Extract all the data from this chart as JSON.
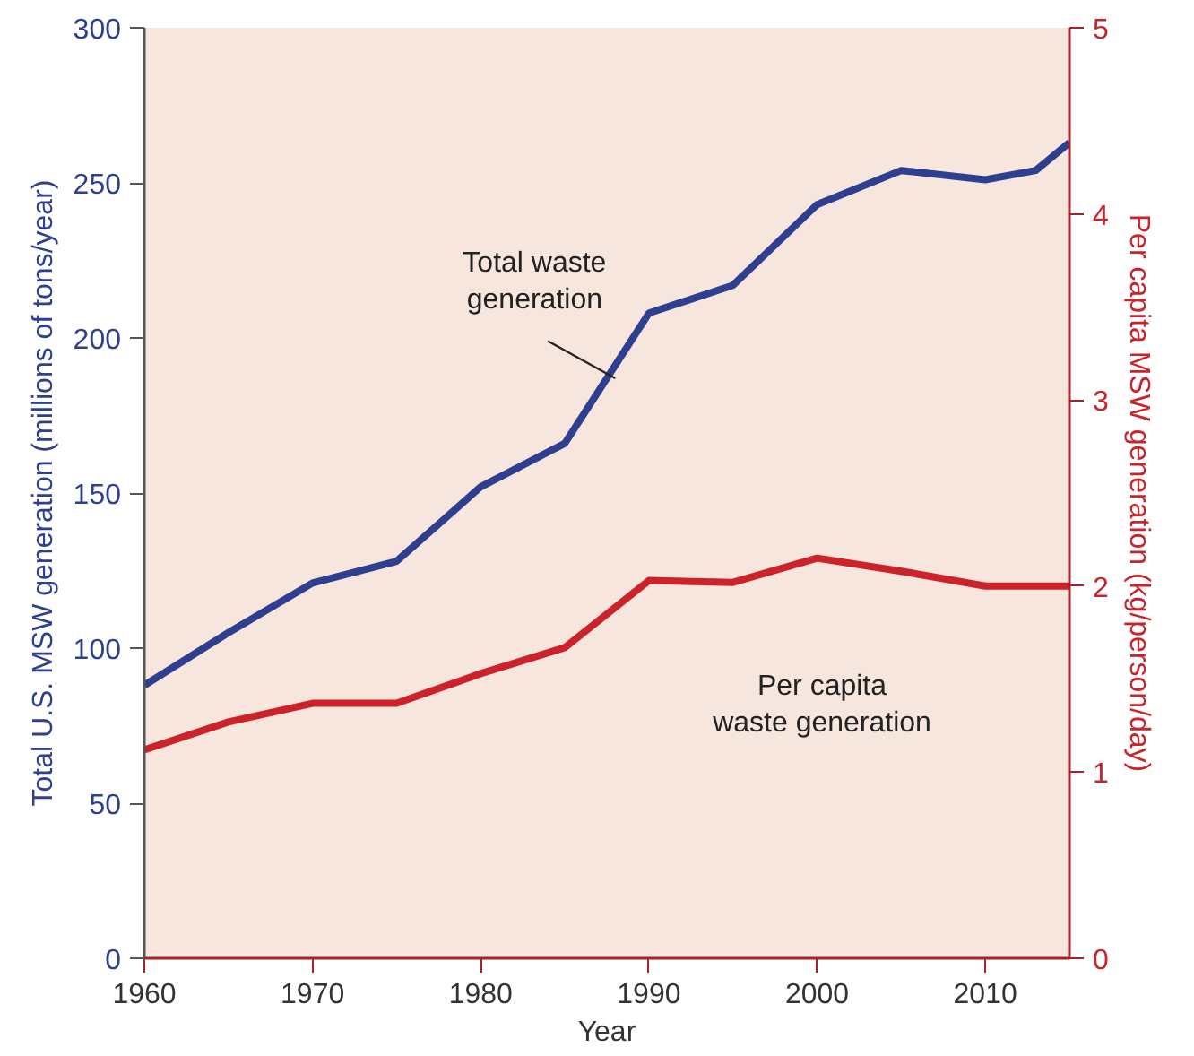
{
  "chart_data": {
    "type": "line",
    "xlabel": "Year",
    "ylabel": "Total U.S. MSW generation (millions of tons/year)",
    "y2label": "Per capita MSW generation (kg/person/day)",
    "x": [
      1960,
      1965,
      1970,
      1975,
      1980,
      1985,
      1990,
      1995,
      2000,
      2005,
      2010,
      2013,
      2015
    ],
    "xlim": [
      1960,
      2015
    ],
    "xticks": [
      1960,
      1970,
      1980,
      1990,
      2000,
      2010
    ],
    "ylim": [
      0,
      300
    ],
    "yticks": [
      0,
      50,
      100,
      150,
      200,
      250,
      300
    ],
    "y2lim": [
      0,
      5
    ],
    "y2ticks": [
      0,
      1,
      2,
      3,
      4,
      5
    ],
    "series": [
      {
        "color": "#2e3f8f",
        "values": [
          88,
          105,
          121,
          128,
          152,
          166,
          208,
          217,
          243,
          254,
          251,
          254,
          263
        ]
      },
      {
        "color": "#cc2229",
        "axis": "y2",
        "x": [
          1960,
          1965,
          1970,
          1975,
          1980,
          1985,
          1990,
          1995,
          2000,
          2005,
          2010,
          2015
        ],
        "values": [
          1.12,
          1.27,
          1.37,
          1.37,
          1.53,
          1.67,
          2.03,
          2.02,
          2.15,
          2.08,
          2.0,
          2.0
        ]
      }
    ],
    "annotations": [
      {
        "text": "Total waste\ngeneration",
        "x": 1988,
        "y": 187
      },
      "Per capita\nwaste generation"
    ],
    "grid": false,
    "marker": "none",
    "line_style": "solid"
  }
}
